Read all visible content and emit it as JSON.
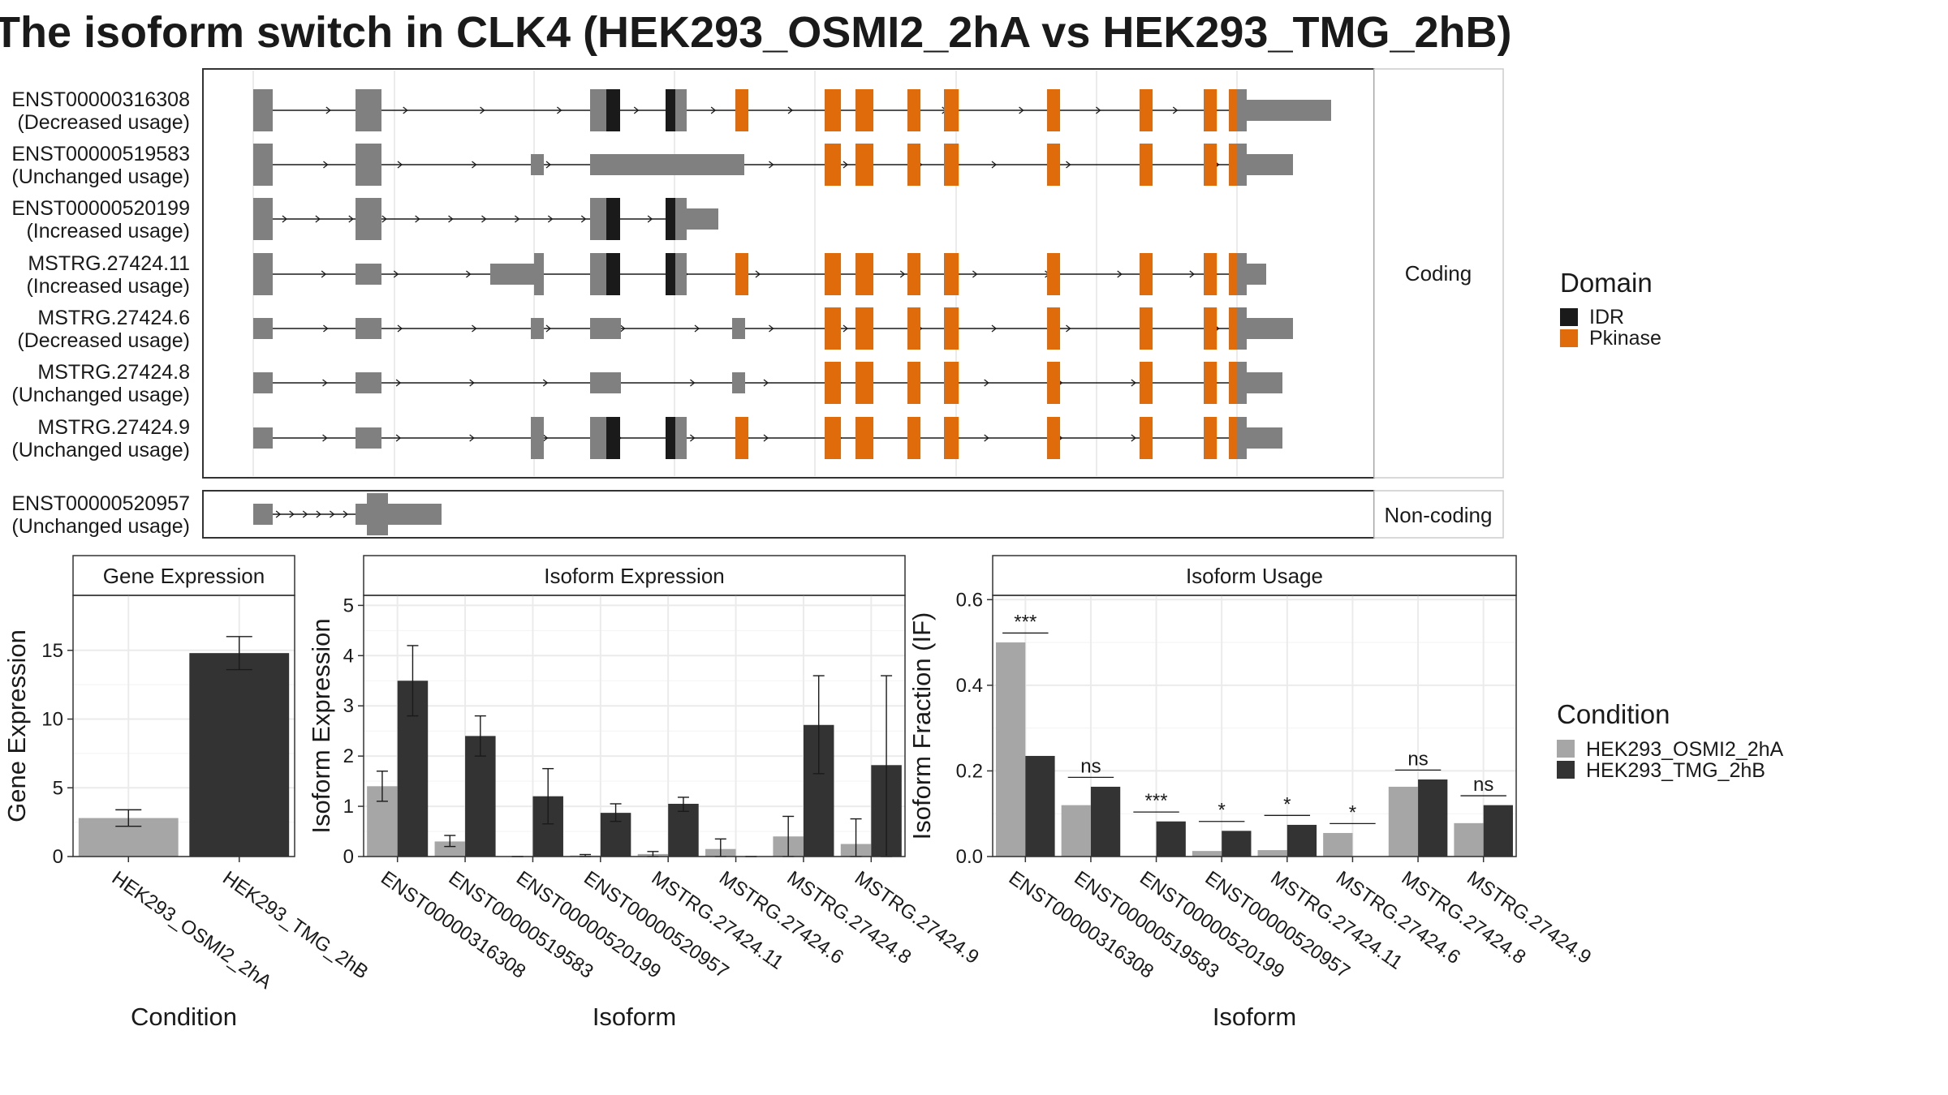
{
  "title": "The isoform switch in CLK4 (HEK293_OSMI2_2hA vs HEK293_TMG_2hB)",
  "colors": {
    "exon": "#808080",
    "idr": "#1a1a1a",
    "pkinase": "#e06b0b",
    "condA": "#a6a6a6",
    "condB": "#333333"
  },
  "structure": {
    "coding_strip": "Coding",
    "noncoding_strip": "Non-coding",
    "coding_transcripts": [
      {
        "id": "ENST00000316308",
        "usage": "(Decreased usage)"
      },
      {
        "id": "ENST00000519583",
        "usage": "(Unchanged usage)"
      },
      {
        "id": "ENST00000520199",
        "usage": "(Increased usage)"
      },
      {
        "id": "MSTRG.27424.11",
        "usage": "(Increased usage)"
      },
      {
        "id": "MSTRG.27424.6",
        "usage": "(Decreased usage)"
      },
      {
        "id": "MSTRG.27424.8",
        "usage": "(Unchanged usage)"
      },
      {
        "id": "MSTRG.27424.9",
        "usage": "(Unchanged usage)"
      }
    ],
    "noncoding_transcripts": [
      {
        "id": "ENST00000520957",
        "usage": "(Unchanged usage)"
      }
    ]
  },
  "legend_domain": {
    "title": "Domain",
    "items": [
      {
        "label": "IDR",
        "color": "#1a1a1a"
      },
      {
        "label": "Pkinase",
        "color": "#e06b0b"
      }
    ]
  },
  "legend_condition": {
    "title": "Condition",
    "items": [
      {
        "label": "HEK293_OSMI2_2hA",
        "color": "#a6a6a6"
      },
      {
        "label": "HEK293_TMG_2hB",
        "color": "#333333"
      }
    ]
  },
  "chart_data": [
    {
      "type": "bar",
      "title": "Gene Expression",
      "xlabel": "Condition",
      "ylabel": "Gene Expression",
      "categories": [
        "HEK293_OSMI2_2hA",
        "HEK293_TMG_2hB"
      ],
      "values": [
        2.8,
        14.8
      ],
      "error": [
        [
          2.2,
          3.4
        ],
        [
          13.6,
          16.0
        ]
      ],
      "ylim": [
        0,
        19
      ],
      "yticks": [
        0,
        5,
        10,
        15
      ],
      "grid": true
    },
    {
      "type": "bar",
      "title": "Isoform Expression",
      "xlabel": "Isoform",
      "ylabel": "Isoform Expression",
      "categories": [
        "ENST00000316308",
        "ENST00000519583",
        "ENST00000520199",
        "ENST00000520957",
        "MSTRG.27424.11",
        "MSTRG.27424.6",
        "MSTRG.27424.8",
        "MSTRG.27424.9"
      ],
      "series": [
        {
          "name": "HEK293_OSMI2_2hA",
          "values": [
            1.4,
            0.3,
            0.0,
            0.02,
            0.05,
            0.15,
            0.4,
            0.25
          ],
          "error": [
            [
              1.1,
              1.7
            ],
            [
              0.2,
              0.42
            ],
            [
              0.0,
              0.0
            ],
            [
              0.0,
              0.04
            ],
            [
              0.0,
              0.1
            ],
            [
              0.0,
              0.35
            ],
            [
              0.0,
              0.8
            ],
            [
              0.0,
              0.75
            ]
          ]
        },
        {
          "name": "HEK293_TMG_2hB",
          "values": [
            3.5,
            2.4,
            1.2,
            0.87,
            1.05,
            0.0,
            2.62,
            1.82
          ],
          "error": [
            [
              2.8,
              4.2
            ],
            [
              2.0,
              2.8
            ],
            [
              0.65,
              1.75
            ],
            [
              0.7,
              1.05
            ],
            [
              0.9,
              1.18
            ],
            [
              0.0,
              0.0
            ],
            [
              1.65,
              3.6
            ],
            [
              0.0,
              3.6
            ]
          ]
        }
      ],
      "ylim": [
        0,
        5.2
      ],
      "yticks": [
        0,
        1,
        2,
        3,
        4,
        5
      ],
      "grid": true
    },
    {
      "type": "bar",
      "title": "Isoform Usage",
      "xlabel": "Isoform",
      "ylabel": "Isoform Fraction (IF)",
      "categories": [
        "ENST00000316308",
        "ENST00000519583",
        "ENST00000520199",
        "ENST00000520957",
        "MSTRG.27424.11",
        "MSTRG.27424.6",
        "MSTRG.27424.8",
        "MSTRG.27424.9"
      ],
      "series": [
        {
          "name": "HEK293_OSMI2_2hA",
          "values": [
            0.5,
            0.12,
            0.0,
            0.013,
            0.015,
            0.055,
            0.163,
            0.078
          ]
        },
        {
          "name": "HEK293_TMG_2hB",
          "values": [
            0.235,
            0.163,
            0.082,
            0.06,
            0.074,
            0.0,
            0.18,
            0.12
          ]
        }
      ],
      "significance": [
        "***",
        "ns",
        "***",
        "*",
        "*",
        "*",
        "ns",
        "ns"
      ],
      "ylim": [
        0,
        0.61
      ],
      "yticks": [
        0.0,
        0.2,
        0.4,
        0.6
      ],
      "grid": true
    }
  ]
}
